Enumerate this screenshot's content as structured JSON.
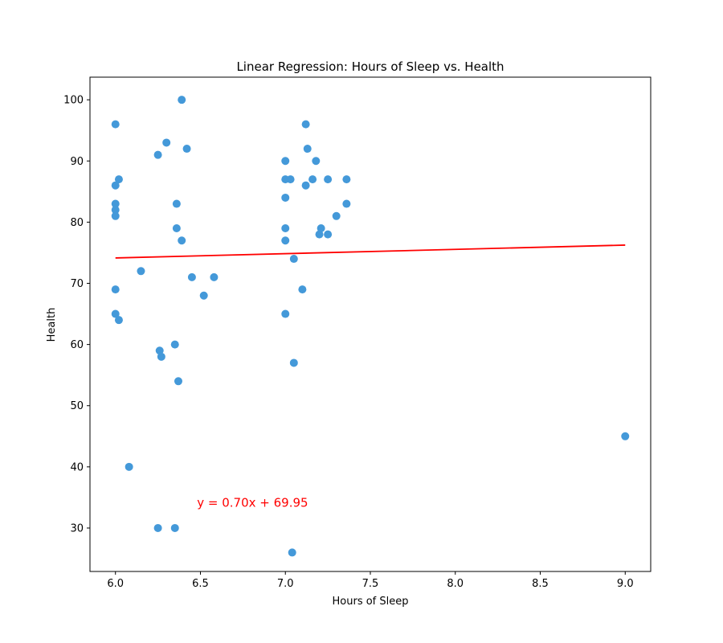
{
  "chart_data": {
    "type": "scatter",
    "title": "Linear Regression: Hours of Sleep vs. Health",
    "xlabel": "Hours of Sleep",
    "ylabel": "Health",
    "xlim": [
      5.85,
      9.15
    ],
    "ylim": [
      22.9,
      103.7
    ],
    "xticks": [
      "6.0",
      "6.5",
      "7.0",
      "7.5",
      "8.0",
      "8.5",
      "9.0"
    ],
    "xtick_values": [
      6.0,
      6.5,
      7.0,
      7.5,
      8.0,
      8.5,
      9.0
    ],
    "yticks": [
      "30",
      "40",
      "50",
      "60",
      "70",
      "80",
      "90",
      "100"
    ],
    "ytick_values": [
      30,
      40,
      50,
      60,
      70,
      80,
      90,
      100
    ],
    "grid": false,
    "point_color": "#4499d9",
    "line_color": "#ff0000",
    "points": [
      {
        "x": 6.0,
        "y": 96
      },
      {
        "x": 6.0,
        "y": 86
      },
      {
        "x": 6.0,
        "y": 83
      },
      {
        "x": 6.0,
        "y": 82
      },
      {
        "x": 6.0,
        "y": 81
      },
      {
        "x": 6.0,
        "y": 69
      },
      {
        "x": 6.0,
        "y": 65
      },
      {
        "x": 6.02,
        "y": 87
      },
      {
        "x": 6.02,
        "y": 64
      },
      {
        "x": 6.08,
        "y": 40
      },
      {
        "x": 6.15,
        "y": 72
      },
      {
        "x": 6.25,
        "y": 91
      },
      {
        "x": 6.26,
        "y": 59
      },
      {
        "x": 6.27,
        "y": 58
      },
      {
        "x": 6.25,
        "y": 30
      },
      {
        "x": 6.3,
        "y": 93
      },
      {
        "x": 6.35,
        "y": 60
      },
      {
        "x": 6.35,
        "y": 30
      },
      {
        "x": 6.36,
        "y": 83
      },
      {
        "x": 6.36,
        "y": 79
      },
      {
        "x": 6.37,
        "y": 54
      },
      {
        "x": 6.39,
        "y": 100
      },
      {
        "x": 6.39,
        "y": 77
      },
      {
        "x": 6.42,
        "y": 92
      },
      {
        "x": 6.45,
        "y": 71
      },
      {
        "x": 6.52,
        "y": 68
      },
      {
        "x": 6.58,
        "y": 71
      },
      {
        "x": 7.0,
        "y": 90
      },
      {
        "x": 7.0,
        "y": 87
      },
      {
        "x": 7.0,
        "y": 84
      },
      {
        "x": 7.0,
        "y": 79
      },
      {
        "x": 7.0,
        "y": 77
      },
      {
        "x": 7.0,
        "y": 65
      },
      {
        "x": 7.03,
        "y": 87
      },
      {
        "x": 7.04,
        "y": 26
      },
      {
        "x": 7.05,
        "y": 74
      },
      {
        "x": 7.05,
        "y": 57
      },
      {
        "x": 7.1,
        "y": 69
      },
      {
        "x": 7.12,
        "y": 96
      },
      {
        "x": 7.12,
        "y": 86
      },
      {
        "x": 7.13,
        "y": 92
      },
      {
        "x": 7.16,
        "y": 87
      },
      {
        "x": 7.18,
        "y": 90
      },
      {
        "x": 7.2,
        "y": 78
      },
      {
        "x": 7.21,
        "y": 79
      },
      {
        "x": 7.25,
        "y": 87
      },
      {
        "x": 7.25,
        "y": 78
      },
      {
        "x": 7.3,
        "y": 81
      },
      {
        "x": 7.36,
        "y": 87
      },
      {
        "x": 7.36,
        "y": 83
      },
      {
        "x": 9.0,
        "y": 45
      }
    ],
    "regression": {
      "slope": 0.7,
      "intercept": 69.95,
      "x_range": [
        6.0,
        9.0
      ]
    },
    "equation_label": "y = 0.70x + 69.95",
    "equation_position": {
      "x": 6.48,
      "y": 33.5
    }
  }
}
